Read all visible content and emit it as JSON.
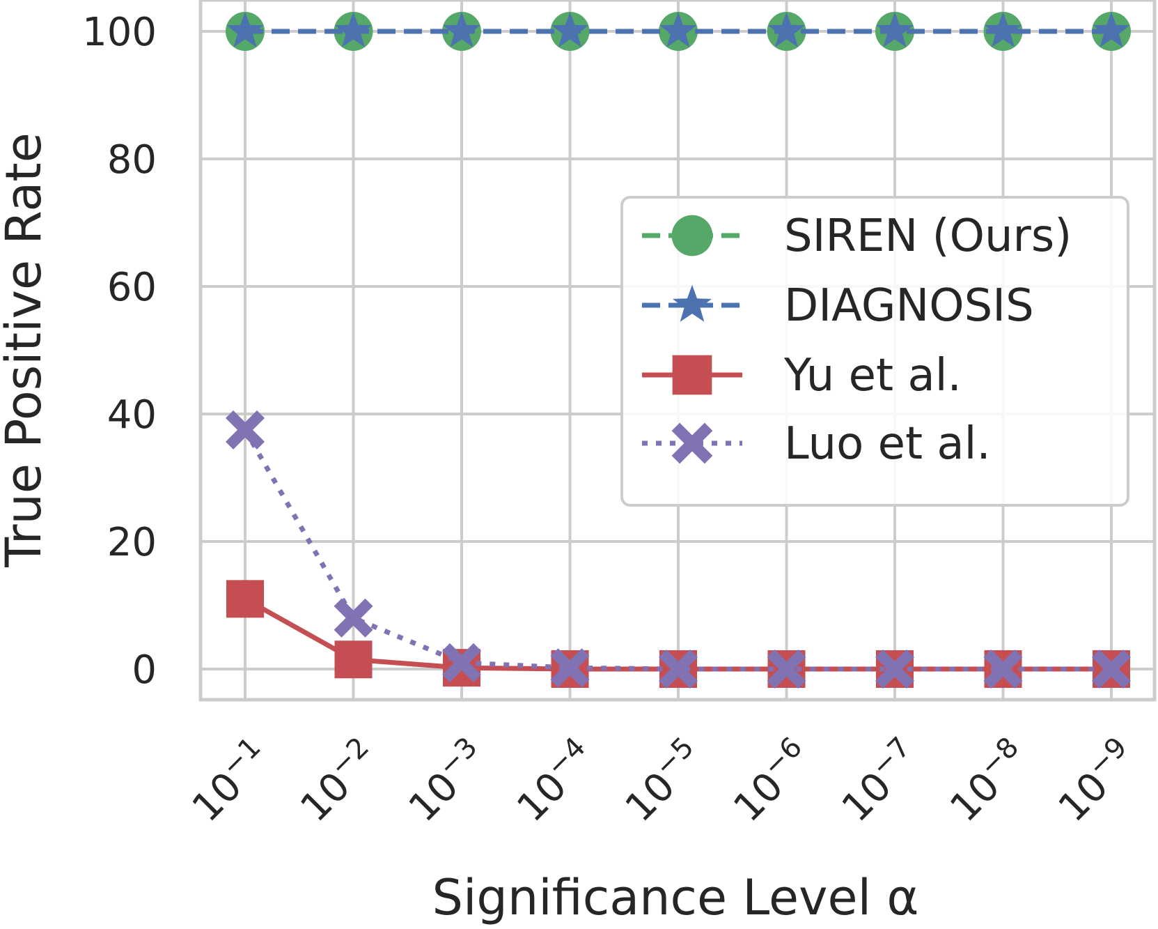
{
  "chart_data": {
    "type": "line",
    "xlabel": "Significance Level α",
    "ylabel": "True Positive Rate",
    "categories": [
      "10",
      "10",
      "10",
      "10",
      "10",
      "10",
      "10",
      "10",
      "10"
    ],
    "category_exponents": [
      "−1",
      "−2",
      "−3",
      "−4",
      "−5",
      "−6",
      "−7",
      "−8",
      "−9"
    ],
    "alpha_values": [
      0.1,
      0.01,
      0.001,
      0.0001,
      1e-05,
      1e-06,
      1e-07,
      1e-08,
      1e-09
    ],
    "yticks": [
      "0",
      "20",
      "40",
      "60",
      "80",
      "100"
    ],
    "ylim": [
      -5,
      105
    ],
    "grid": true,
    "legend_position": "center-right",
    "series": [
      {
        "name": "SIREN (Ours)",
        "color": "#55a868",
        "marker": "circle",
        "linestyle": "dashed",
        "values": [
          100,
          100,
          100,
          100,
          100,
          100,
          100,
          100,
          100
        ]
      },
      {
        "name": "DIAGNOSIS",
        "color": "#4c72b0",
        "marker": "star",
        "linestyle": "dashed",
        "values": [
          100,
          100,
          100,
          100,
          100,
          100,
          100,
          100,
          100
        ]
      },
      {
        "name": "Yu et al.",
        "color": "#c44e52",
        "marker": "square",
        "linestyle": "solid",
        "values": [
          11,
          1.5,
          0.2,
          0,
          0,
          0,
          0,
          0,
          0
        ]
      },
      {
        "name": "Luo et al.",
        "color": "#8172b3",
        "marker": "x-filled",
        "linestyle": "dotted",
        "values": [
          37.5,
          8,
          1,
          0.2,
          0,
          0,
          0,
          0,
          0
        ]
      }
    ]
  }
}
